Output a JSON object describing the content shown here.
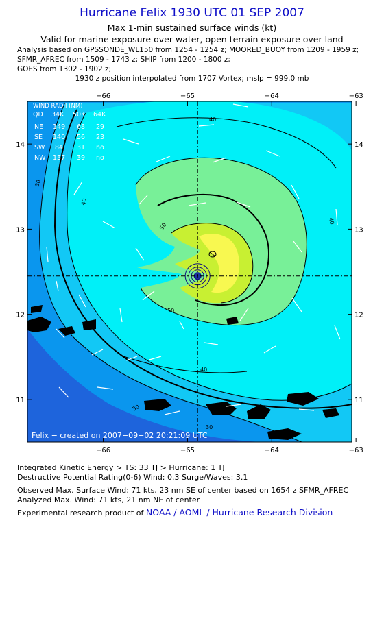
{
  "header": {
    "title": "Hurricane Felix 1930 UTC 01 SEP 2007",
    "subtitle1": "Max 1-min sustained surface winds (kt)",
    "subtitle2": "Valid for marine exposure over water, open terrain exposure over land",
    "analysis1": "Analysis based on  GPSSONDE_WL150 from 1254 - 1254 z;  MOORED_BUOY from 1209 - 1959 z;",
    "analysis2": "SFMR_AFREC from 1509 - 1743 z;  SHIP from 1200 - 1800 z;",
    "analysis3": "GOES from 1302 - 1902 z;",
    "position": "1930 z position interpolated from 1707 Vortex; mslp = 999.0 mb"
  },
  "map": {
    "lon_labels": [
      "−66",
      "−65",
      "−64",
      "−63"
    ],
    "lon_values": [
      -66,
      -65,
      -64,
      -63
    ],
    "lat_labels": [
      "14",
      "13",
      "12",
      "11"
    ],
    "lat_values": [
      14,
      13,
      12,
      11
    ],
    "lon_range": [
      -66.9,
      -63.05
    ],
    "lat_range": [
      10.5,
      14.5
    ],
    "center": {
      "lon": -64.88,
      "lat": 12.45
    },
    "contour_labels": {
      "c30": "30",
      "c40": "40",
      "c50": "50"
    },
    "credit": "Felix − created on 2007−09−02 20:21:09 UTC",
    "colors": {
      "lt20": "#1e64dc",
      "c20_30": "#0a96ee",
      "c30_40": "#12c8f5",
      "c40_50": "#00f0f8",
      "c50_64": "#78f098",
      "c64_70": "#c8f032",
      "c70": "#f8f850"
    }
  },
  "wind_radii": {
    "title": "WIND RADII (NM)",
    "header": [
      "QD",
      "34K",
      "50K",
      "64K"
    ],
    "rows": [
      [
        "NE",
        "149",
        "68",
        "29"
      ],
      [
        "SE",
        "140",
        "56",
        "23"
      ],
      [
        "SW",
        "84",
        "31",
        "no"
      ],
      [
        "NW",
        "137",
        "39",
        "no"
      ]
    ]
  },
  "footer": {
    "ike": "Integrated Kinetic Energy > TS: 33 TJ   > Hurricane: 1 TJ",
    "dpr": "Destructive Potential Rating(0-6)   Wind: 0.3 Surge/Waves: 3.1",
    "obs_max": "Observed Max. Surface Wind: 71 kts, 23 nm SE of center based on 1654 z SFMR_AFREC",
    "ana_max": "Analyzed Max. Wind: 71 kts, 21 nm NE of center",
    "product_prefix": "Experimental research product of ",
    "product_org": "NOAA / AOML / Hurricane Research Division"
  }
}
